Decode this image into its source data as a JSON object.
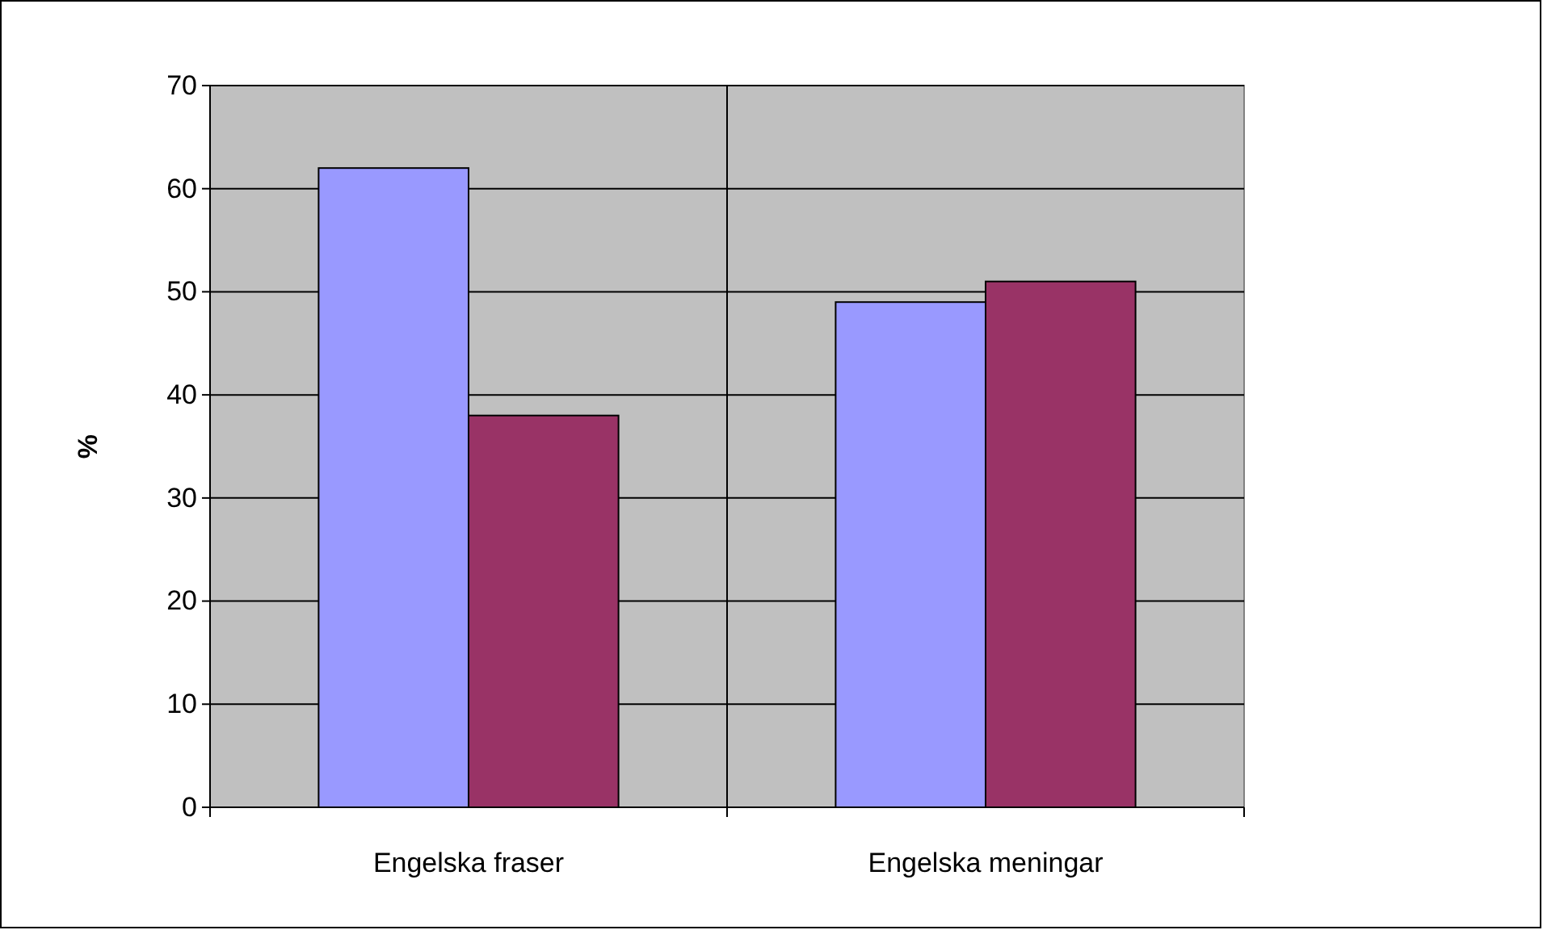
{
  "chart_data": {
    "type": "bar",
    "ylabel": "%",
    "categories": [
      "Engelska fraser",
      "Engelska meningar"
    ],
    "series": [
      {
        "color": "#9999ff",
        "values": [
          62,
          49
        ]
      },
      {
        "color": "#993366",
        "values": [
          38,
          51
        ]
      }
    ],
    "ylim": [
      0,
      70
    ],
    "yticks": [
      0,
      10,
      20,
      30,
      40,
      50,
      60,
      70
    ],
    "grid": true
  }
}
